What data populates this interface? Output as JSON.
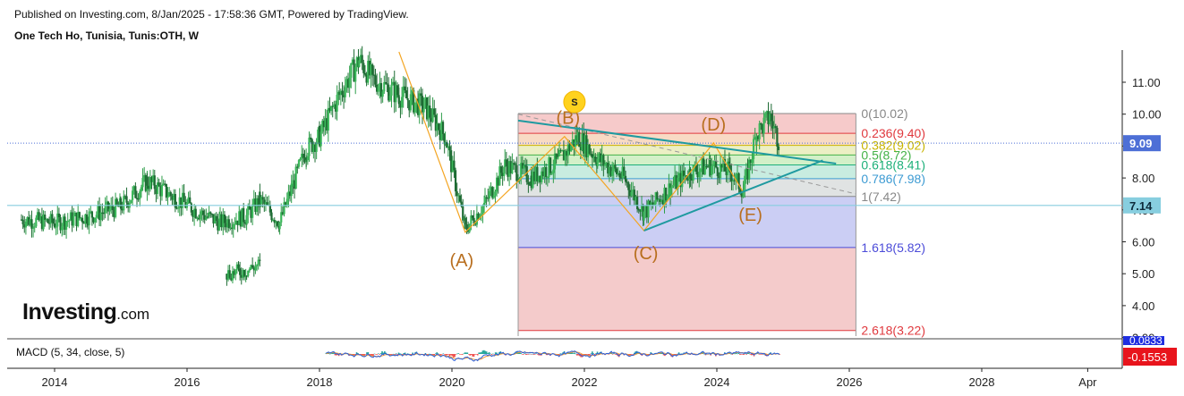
{
  "header": {
    "published": "Published on Investing.com, 8/Jan/2025 - 17:58:36 GMT, Powered by TradingView.",
    "symbol": "One Tech Ho, Tunisia, Tunis:OTH, W"
  },
  "logo": {
    "main": "Investing",
    "suffix": ".com"
  },
  "macd": {
    "label": "MACD (5, 34, close, 5)",
    "value_top": "0.0833",
    "value_bottom": "-0.1553"
  },
  "colors": {
    "up": "#26a69a",
    "down": "#ef5350",
    "candle_body": "#2e9e4a",
    "wave_line": "#f4a522",
    "trend": "#1f9aa0",
    "label_wave": "#b86e1e",
    "last_price_tag": "#4d6fd6",
    "level_714": "#87cedf"
  },
  "chart_data": {
    "type": "candlestick",
    "title": "One Tech Ho, Tunisia, Tunis:OTH, W",
    "x_ticks": [
      "2014",
      "2016",
      "2018",
      "2020",
      "2022",
      "2024",
      "2026",
      "2028",
      "Apr"
    ],
    "y_ticks": [
      "3.00",
      "4.00",
      "5.00",
      "6.00",
      "7.00",
      "8.00",
      "9.00",
      "10.00",
      "11.00"
    ],
    "ylim": [
      2.7,
      12.0
    ],
    "last_price": "9.09",
    "price_tags": [
      "9.09",
      "7.14"
    ],
    "horizontal_line": 7.14,
    "price_path": [
      [
        2013.5,
        6.7
      ],
      [
        2014.0,
        6.6
      ],
      [
        2014.5,
        6.8
      ],
      [
        2015.0,
        7.1
      ],
      [
        2015.4,
        7.9
      ],
      [
        2015.8,
        7.4
      ],
      [
        2016.2,
        6.9
      ],
      [
        2016.5,
        6.6
      ],
      [
        2016.9,
        6.8
      ],
      [
        2017.1,
        7.3
      ],
      [
        2017.4,
        6.6
      ],
      [
        2017.6,
        7.8
      ],
      [
        2017.8,
        8.9
      ],
      [
        2018.0,
        9.3
      ],
      [
        2018.3,
        10.6
      ],
      [
        2018.6,
        11.7
      ],
      [
        2018.8,
        11.1
      ],
      [
        2019.2,
        10.6
      ],
      [
        2019.6,
        10.2
      ],
      [
        2019.9,
        9.3
      ],
      [
        2020.2,
        6.4
      ],
      [
        2020.5,
        7.2
      ],
      [
        2020.8,
        8.4
      ],
      [
        2021.2,
        8.0
      ],
      [
        2021.6,
        8.5
      ],
      [
        2021.9,
        9.3
      ],
      [
        2022.2,
        8.6
      ],
      [
        2022.6,
        8.0
      ],
      [
        2022.9,
        6.9
      ],
      [
        2023.3,
        7.7
      ],
      [
        2023.6,
        8.2
      ],
      [
        2023.9,
        8.4
      ],
      [
        2024.2,
        8.2
      ],
      [
        2024.4,
        7.6
      ],
      [
        2024.6,
        9.4
      ],
      [
        2024.8,
        9.9
      ],
      [
        2024.95,
        9.1
      ]
    ],
    "early_segment": [
      [
        2016.6,
        5.0
      ],
      [
        2016.9,
        5.1
      ],
      [
        2017.1,
        5.3
      ]
    ],
    "elliott_waves": [
      {
        "label": "(A)",
        "x": 2020.2,
        "y": 6.3
      },
      {
        "label": "(B)",
        "x": 2021.7,
        "y": 9.3
      },
      {
        "label": "(C)",
        "x": 2022.9,
        "y": 6.35
      },
      {
        "label": "(D)",
        "x": 2023.95,
        "y": 9.1
      },
      {
        "label": "(E)",
        "x": 2024.4,
        "y": 7.55
      }
    ],
    "wave_marker": "S",
    "fibonacci": {
      "x_start": 2021.0,
      "x_end": 2026.1,
      "levels": [
        {
          "ratio": "0",
          "price": "10.02",
          "label": "0(10.02)",
          "value": 10.02,
          "color": "#888888"
        },
        {
          "ratio": "0.236",
          "price": "9.40",
          "label": "0.236(9.40)",
          "value": 9.4,
          "color": "#e0393e"
        },
        {
          "ratio": "0.382",
          "price": "9.02",
          "label": "0.382(9.02)",
          "value": 9.02,
          "color": "#c8b400"
        },
        {
          "ratio": "0.5",
          "price": "8.72",
          "label": "0.5(8.72)",
          "value": 8.72,
          "color": "#44b248"
        },
        {
          "ratio": "0.618",
          "price": "8.41",
          "label": "0.618(8.41)",
          "value": 8.41,
          "color": "#1db07a"
        },
        {
          "ratio": "0.786",
          "price": "7.98",
          "label": "0.786(7.98)",
          "value": 7.98,
          "color": "#3d9bd3"
        },
        {
          "ratio": "1",
          "price": "7.42",
          "label": "1(7.42)",
          "value": 7.42,
          "color": "#888888"
        },
        {
          "ratio": "1.618",
          "price": "5.82",
          "label": "1.618(5.82)",
          "value": 5.82,
          "color": "#4b4bd8"
        },
        {
          "ratio": "2.618",
          "price": "3.22",
          "label": "2.618(3.22)",
          "value": 3.22,
          "color": "#e0393e"
        }
      ]
    },
    "trendlines": [
      {
        "from": [
          2021.0,
          9.8
        ],
        "to": [
          2025.8,
          8.45
        ]
      },
      {
        "from": [
          2022.9,
          6.35
        ],
        "to": [
          2025.6,
          8.55
        ]
      }
    ],
    "dashed_line": {
      "from": [
        2021.0,
        10.0
      ],
      "to": [
        2026.1,
        7.5
      ]
    }
  }
}
